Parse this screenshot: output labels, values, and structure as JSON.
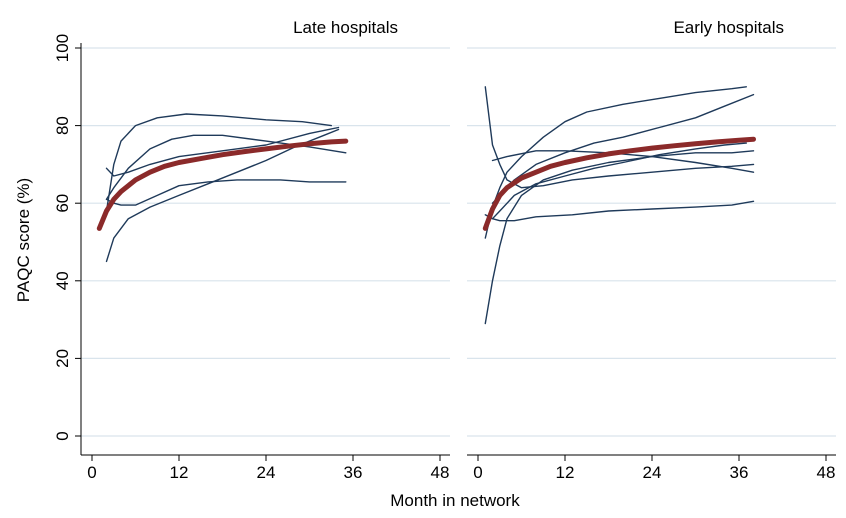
{
  "chart_data": {
    "type": "line",
    "xlabel": "Month in network",
    "ylabel": "PAQC score (%)",
    "xlim": [
      0,
      48
    ],
    "ylim": [
      0,
      100
    ],
    "xticks": [
      0,
      12,
      24,
      36,
      48
    ],
    "yticks": [
      0,
      20,
      40,
      60,
      80,
      100
    ],
    "grid": "horizontal",
    "colors": {
      "hospital_line": "#1f3a5a",
      "average_line": "#8b2a2a",
      "grid": "#d9e4ec",
      "panel_title_band": "#ffffff"
    },
    "panels": [
      {
        "title": "Late hospitals",
        "series": [
          {
            "role": "hospital",
            "points": [
              [
                2,
                58
              ],
              [
                3,
                70
              ],
              [
                4,
                76
              ],
              [
                6,
                80
              ],
              [
                9,
                82
              ],
              [
                13,
                83
              ],
              [
                18,
                82.5
              ],
              [
                24,
                81.5
              ],
              [
                29,
                81
              ],
              [
                33,
                80
              ]
            ]
          },
          {
            "role": "hospital",
            "points": [
              [
                2,
                69
              ],
              [
                3,
                67
              ],
              [
                5,
                68
              ],
              [
                8,
                70
              ],
              [
                12,
                72
              ],
              [
                18,
                73.5
              ],
              [
                24,
                75
              ],
              [
                30,
                78
              ],
              [
                34,
                79.5
              ]
            ]
          },
          {
            "role": "hospital",
            "points": [
              [
                2,
                61
              ],
              [
                3,
                64
              ],
              [
                5,
                69
              ],
              [
                8,
                74
              ],
              [
                11,
                76.5
              ],
              [
                14,
                77.5
              ],
              [
                18,
                77.5
              ],
              [
                24,
                76
              ],
              [
                30,
                74.5
              ],
              [
                35,
                73
              ]
            ]
          },
          {
            "role": "hospital",
            "points": [
              [
                2,
                45
              ],
              [
                3,
                51
              ],
              [
                5,
                56
              ],
              [
                8,
                59
              ],
              [
                12,
                62
              ],
              [
                16,
                65
              ],
              [
                20,
                68
              ],
              [
                24,
                71
              ],
              [
                28,
                74.5
              ],
              [
                32,
                77.5
              ],
              [
                34,
                79
              ]
            ]
          },
          {
            "role": "hospital",
            "points": [
              [
                2,
                61
              ],
              [
                3,
                60
              ],
              [
                4,
                59.5
              ],
              [
                6,
                59.5
              ],
              [
                9,
                62
              ],
              [
                12,
                64.5
              ],
              [
                16,
                65.5
              ],
              [
                20,
                66
              ],
              [
                26,
                66
              ],
              [
                30,
                65.5
              ],
              [
                35,
                65.5
              ]
            ]
          },
          {
            "role": "average",
            "points": [
              [
                1,
                53.5
              ],
              [
                2,
                58
              ],
              [
                3,
                61
              ],
              [
                4,
                63
              ],
              [
                6,
                66
              ],
              [
                8,
                68
              ],
              [
                10,
                69.5
              ],
              [
                12,
                70.5
              ],
              [
                15,
                71.5
              ],
              [
                18,
                72.5
              ],
              [
                21,
                73.3
              ],
              [
                24,
                74
              ],
              [
                27,
                74.7
              ],
              [
                30,
                75.3
              ],
              [
                33,
                75.8
              ],
              [
                35,
                76
              ]
            ]
          }
        ]
      },
      {
        "title": "Early hospitals",
        "series": [
          {
            "role": "hospital",
            "points": [
              [
                1,
                90
              ],
              [
                2,
                75
              ],
              [
                3,
                70
              ],
              [
                4,
                66
              ],
              [
                6,
                64
              ],
              [
                9,
                64.5
              ],
              [
                13,
                66
              ],
              [
                18,
                67
              ],
              [
                24,
                68
              ],
              [
                30,
                69
              ],
              [
                35,
                69.5
              ],
              [
                38,
                70
              ]
            ]
          },
          {
            "role": "hospital",
            "points": [
              [
                1,
                29
              ],
              [
                2,
                40
              ],
              [
                3,
                49
              ],
              [
                4,
                56
              ],
              [
                6,
                62
              ],
              [
                9,
                66
              ],
              [
                13,
                68.5
              ],
              [
                18,
                70.5
              ],
              [
                24,
                72
              ],
              [
                30,
                73
              ],
              [
                35,
                73
              ],
              [
                38,
                73.5
              ]
            ]
          },
          {
            "role": "hospital",
            "points": [
              [
                1,
                51
              ],
              [
                2,
                59
              ],
              [
                3,
                64
              ],
              [
                4,
                68
              ],
              [
                6,
                72
              ],
              [
                9,
                77
              ],
              [
                12,
                81
              ],
              [
                15,
                83.5
              ],
              [
                20,
                85.5
              ],
              [
                25,
                87
              ],
              [
                30,
                88.5
              ],
              [
                35,
                89.5
              ],
              [
                37,
                90
              ]
            ]
          },
          {
            "role": "hospital",
            "points": [
              [
                2,
                71
              ],
              [
                4,
                72
              ],
              [
                8,
                73.5
              ],
              [
                12,
                73.5
              ],
              [
                18,
                73
              ],
              [
                24,
                72
              ],
              [
                30,
                70.5
              ],
              [
                35,
                69
              ],
              [
                38,
                68
              ]
            ]
          },
          {
            "role": "hospital",
            "points": [
              [
                1,
                57
              ],
              [
                2,
                56
              ],
              [
                3,
                55.5
              ],
              [
                5,
                55.5
              ],
              [
                8,
                56.5
              ],
              [
                13,
                57
              ],
              [
                18,
                58
              ],
              [
                24,
                58.5
              ],
              [
                30,
                59
              ],
              [
                35,
                59.5
              ],
              [
                38,
                60.5
              ]
            ]
          },
          {
            "role": "hospital",
            "points": [
              [
                2,
                60
              ],
              [
                3,
                62
              ],
              [
                5,
                66
              ],
              [
                8,
                70
              ],
              [
                12,
                73
              ],
              [
                16,
                75.5
              ],
              [
                20,
                77
              ],
              [
                25,
                79.5
              ],
              [
                30,
                82
              ],
              [
                34,
                85
              ],
              [
                38,
                88
              ]
            ]
          },
          {
            "role": "hospital",
            "points": [
              [
                2,
                56
              ],
              [
                3,
                58
              ],
              [
                5,
                62
              ],
              [
                8,
                65
              ],
              [
                12,
                67
              ],
              [
                16,
                69
              ],
              [
                20,
                70.5
              ],
              [
                25,
                72.5
              ],
              [
                30,
                74
              ],
              [
                34,
                75
              ],
              [
                37,
                75.5
              ]
            ]
          },
          {
            "role": "average",
            "points": [
              [
                1,
                53.5
              ],
              [
                2,
                58.5
              ],
              [
                3,
                62
              ],
              [
                4,
                64
              ],
              [
                6,
                66.5
              ],
              [
                8,
                68
              ],
              [
                10,
                69.5
              ],
              [
                12,
                70.5
              ],
              [
                15,
                71.7
              ],
              [
                18,
                72.7
              ],
              [
                21,
                73.5
              ],
              [
                24,
                74.2
              ],
              [
                27,
                74.8
              ],
              [
                30,
                75.3
              ],
              [
                33,
                75.8
              ],
              [
                36,
                76.2
              ],
              [
                38,
                76.5
              ]
            ]
          }
        ]
      }
    ]
  }
}
